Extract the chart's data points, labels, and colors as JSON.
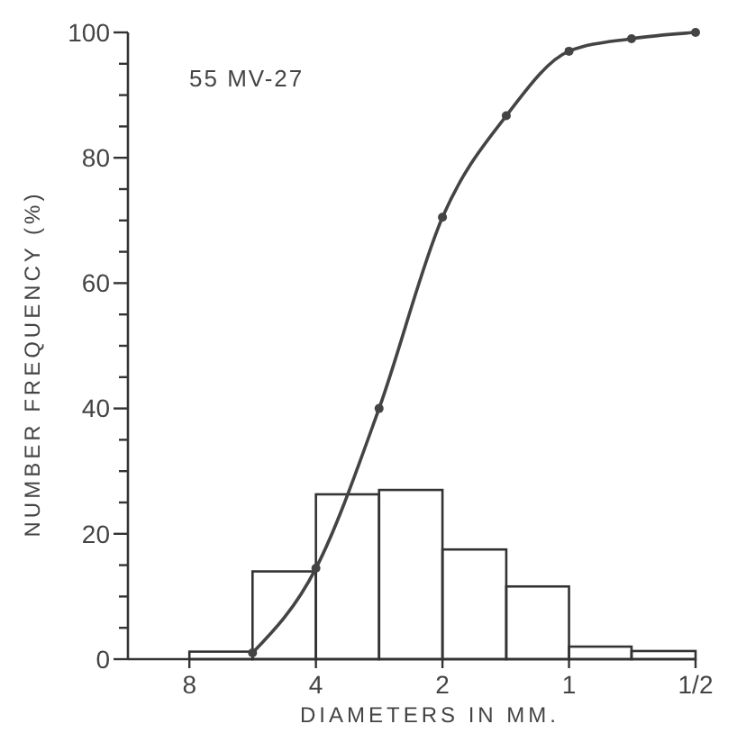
{
  "chart_data": {
    "type": "line",
    "xlabel": "DIAMETERS IN MM.",
    "ylabel": "NUMBER FREQUENCY (%)",
    "annotations": [
      "55 MV-27"
    ],
    "log": "x",
    "xlim": [
      11.2,
      0.5
    ],
    "xticks": [
      8,
      4,
      2,
      1,
      {
        "value": 0.5,
        "label": "1/2"
      }
    ],
    "ylim": [
      0,
      100
    ],
    "yticks": [
      0,
      {
        "value": 5,
        "label": null
      },
      {
        "value": 10,
        "label": null
      },
      {
        "value": 15,
        "label": null
      },
      20,
      {
        "value": 25,
        "label": null
      },
      {
        "value": 30,
        "label": null
      },
      {
        "value": 35,
        "label": null
      },
      40,
      {
        "value": 45,
        "label": null
      },
      {
        "value": 50,
        "label": null
      },
      {
        "value": 55,
        "label": null
      },
      60,
      {
        "value": 65,
        "label": null
      },
      {
        "value": 70,
        "label": null
      },
      {
        "value": 75,
        "label": null
      },
      80,
      {
        "value": 85,
        "label": null
      },
      {
        "value": 90,
        "label": null
      },
      {
        "value": 95,
        "label": null
      },
      100
    ],
    "grid": false,
    "series": [
      {
        "type": "histogram",
        "color": "#333333",
        "bins": [
          8,
          5.66,
          4,
          2.83,
          2,
          1.41,
          1,
          0.71,
          0.5
        ],
        "values": [
          1.2,
          14,
          26.3,
          27,
          17.5,
          11.6,
          2,
          1.3
        ]
      },
      {
        "color": "#444444",
        "marker": "circle",
        "line_style": "solid",
        "x": [
          5.66,
          4,
          2.83,
          2,
          1.41,
          1,
          0.71,
          0.5
        ],
        "values": [
          1,
          14.5,
          40,
          70.5,
          86.7,
          97,
          99,
          100
        ]
      }
    ]
  }
}
